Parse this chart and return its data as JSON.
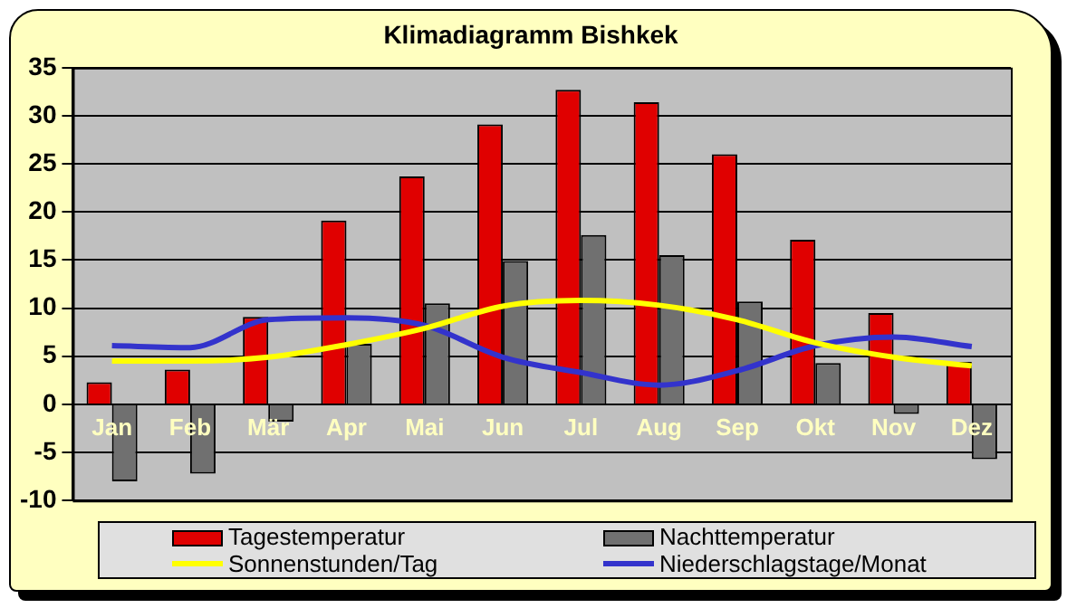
{
  "chart_data": {
    "type": "bar",
    "title": "Klimadiagramm Bishkek",
    "categories": [
      "Jan",
      "Feb",
      "Mär",
      "Apr",
      "Mai",
      "Jun",
      "Jul",
      "Aug",
      "Sep",
      "Okt",
      "Nov",
      "Dez"
    ],
    "series": [
      {
        "name": "Tagestemperatur",
        "color": "#e00000",
        "values": [
          2.3,
          3.6,
          9.1,
          19.1,
          23.7,
          29.1,
          32.7,
          31.4,
          26.0,
          17.1,
          9.5,
          4.4
        ]
      },
      {
        "name": "Nachttemperatur",
        "color": "#707070",
        "values": [
          -8.0,
          -7.2,
          -1.8,
          6.3,
          10.5,
          14.9,
          17.6,
          15.5,
          10.7,
          4.3,
          -1.0,
          -5.7
        ]
      },
      {
        "name": "Sonnenstunden/Tag",
        "type": "line",
        "color": "#ffff00",
        "values": [
          4.5,
          4.5,
          4.9,
          6.2,
          7.9,
          10.2,
          10.8,
          10.3,
          8.8,
          6.4,
          4.9,
          4.0
        ]
      },
      {
        "name": "Niederschlagstage/Monat",
        "type": "line",
        "color": "#3333cc",
        "values": [
          6.1,
          5.9,
          8.8,
          9.0,
          8.2,
          4.9,
          3.3,
          2.0,
          3.5,
          6.1,
          7.0,
          6.0
        ]
      }
    ],
    "ylim": [
      -10,
      35
    ],
    "yticks": [
      -10,
      -5,
      0,
      5,
      10,
      15,
      20,
      25,
      30,
      35
    ],
    "grid": "y",
    "legend": "bottom",
    "marker": "none",
    "line_style": "solid"
  }
}
